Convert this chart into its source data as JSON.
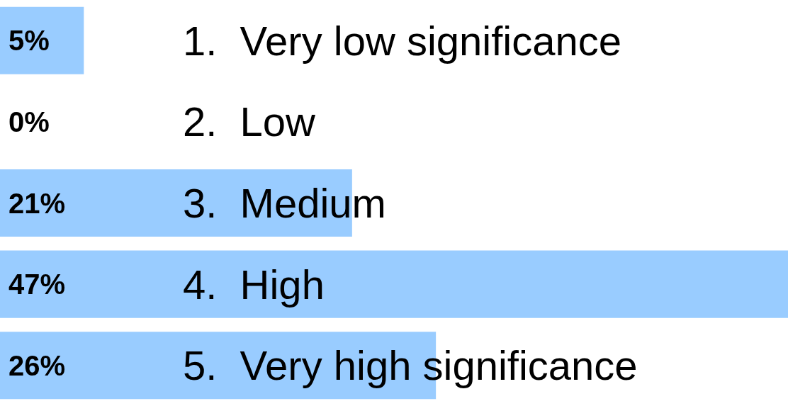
{
  "chart_data": {
    "type": "bar",
    "orientation": "horizontal",
    "categories": [
      "1.  Very low significance",
      "2.  Low",
      "3.  Medium",
      "4.  High",
      "5.  Very high significance"
    ],
    "values": [
      5,
      0,
      21,
      47,
      26
    ],
    "value_labels": [
      "5%",
      "0%",
      "21%",
      "47%",
      "26%"
    ],
    "color": "#99ccff"
  }
}
